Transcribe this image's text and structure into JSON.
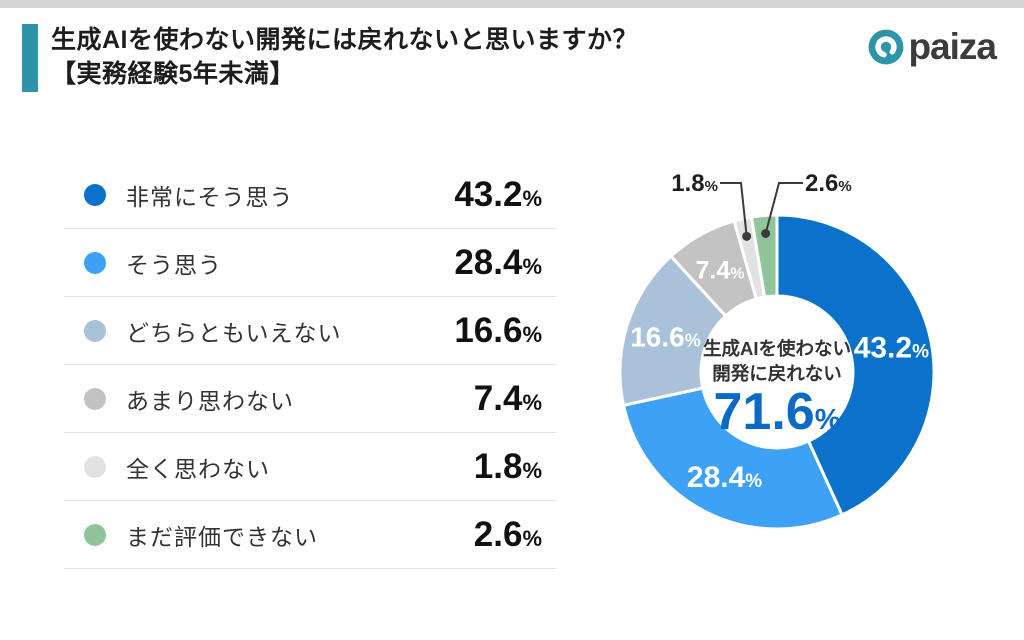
{
  "page": {
    "accent_color": "#2e94aa",
    "background": "#ffffff"
  },
  "header": {
    "title_line1": "生成AIを使わない開発には戻れないと思いますか？",
    "title_line2": "【実務経験5年未満】",
    "logo_text": "paiza"
  },
  "legend": {
    "unit": "%",
    "items": [
      {
        "label": "非常にそう思う",
        "value": "43.2",
        "color": "#0b72cb"
      },
      {
        "label": "そう思う",
        "value": "28.4",
        "color": "#3da2f5"
      },
      {
        "label": "どちらともいえない",
        "value": "16.6",
        "color": "#a9c1d9"
      },
      {
        "label": "あまり思わない",
        "value": "7.4",
        "color": "#c3c3c4"
      },
      {
        "label": "全く思わない",
        "value": "1.8",
        "color": "#e2e2e4"
      },
      {
        "label": "まだ評価できない",
        "value": "2.6",
        "color": "#90c49b"
      }
    ]
  },
  "chart_data": {
    "type": "pie",
    "subtype": "donut",
    "title": "生成AIを使わない開発には戻れないと思いますか？【実務経験5年未満】",
    "categories": [
      "非常にそう思う",
      "そう思う",
      "どちらともいえない",
      "あまり思わない",
      "全く思わない",
      "まだ評価できない"
    ],
    "values": [
      43.2,
      28.4,
      16.6,
      7.4,
      1.8,
      2.6
    ],
    "colors": [
      "#0b72cb",
      "#3da2f5",
      "#a9c1d9",
      "#c3c3c4",
      "#e2e2e4",
      "#90c49b"
    ],
    "unit": "%",
    "start_angle_deg": 0,
    "direction": "clockwise",
    "inside_label_indices": [
      0,
      1,
      2,
      3
    ],
    "callout_label_indices": [
      4,
      5
    ],
    "center": {
      "line1": "生成AIを使わない",
      "line2": "開発に戻れない",
      "value": "71.6",
      "unit": "%",
      "value_color": "#0b6ac6",
      "text_color": "#333333"
    }
  }
}
